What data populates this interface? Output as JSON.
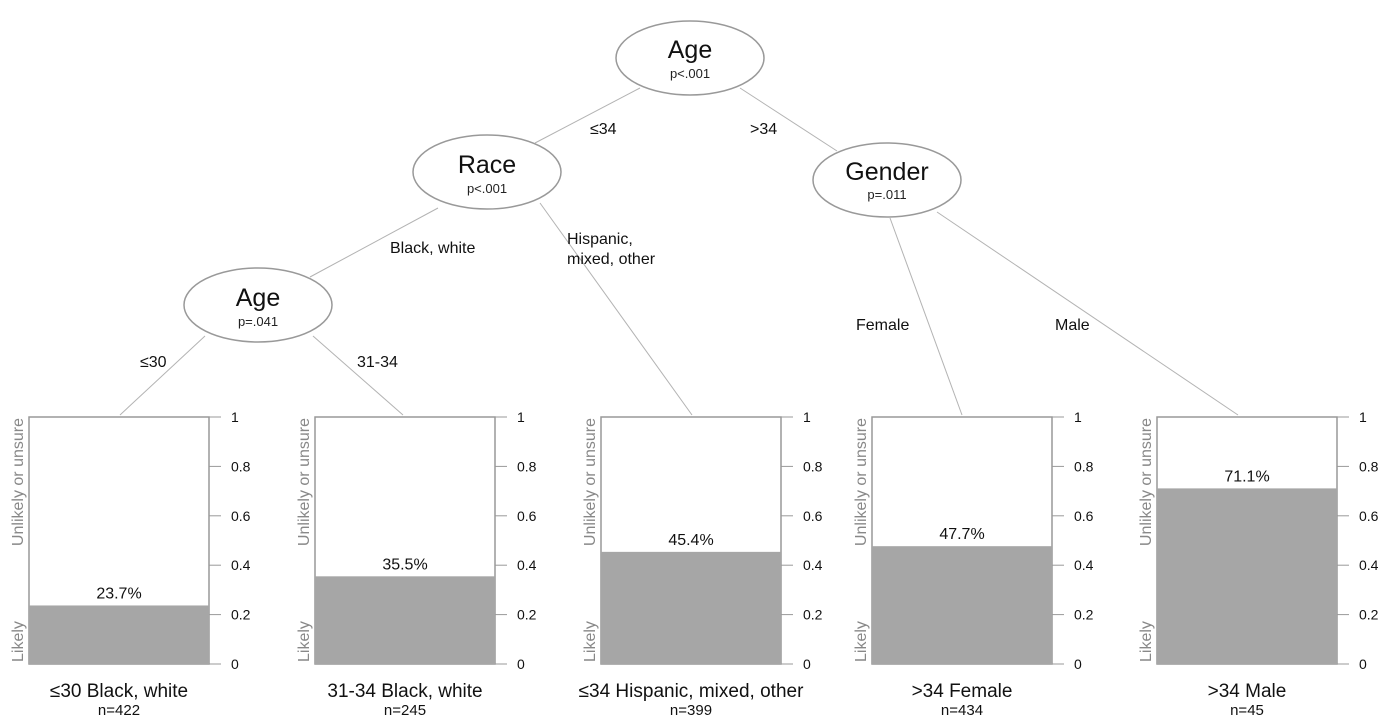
{
  "nodes": {
    "root": {
      "title": "Age",
      "p": "p<.001"
    },
    "race": {
      "title": "Race",
      "p": "p<.001"
    },
    "gender": {
      "title": "Gender",
      "p": "p=.011"
    },
    "age2": {
      "title": "Age",
      "p": "p=.041"
    }
  },
  "edges": {
    "le34": "≤34",
    "gt34": ">34",
    "black_white": "Black, white",
    "hispanic_1": "Hispanic,",
    "hispanic_2": "mixed, other",
    "female": "Female",
    "male": "Male",
    "le30": "≤30",
    "a31_34": "31-34"
  },
  "axis": {
    "ticks": [
      "0",
      "0.2",
      "0.4",
      "0.6",
      "0.8",
      "1"
    ],
    "likely": "Likely",
    "unlikely": "Unlikely or unsure"
  },
  "colors": {
    "bar_fill": "#a6a6a6",
    "frame": "#999999",
    "edge": "#b3b3b3",
    "side_text": "#888888"
  },
  "leaves": [
    {
      "name": "≤30 Black, white",
      "n": "n=422",
      "pct_label": "23.7%",
      "value": 0.237
    },
    {
      "name": "31-34 Black, white",
      "n": "n=245",
      "pct_label": "35.5%",
      "value": 0.355
    },
    {
      "name": "≤34 Hispanic, mixed, other",
      "n": "n=399",
      "pct_label": "45.4%",
      "value": 0.454
    },
    {
      "name": ">34 Female",
      "n": "n=434",
      "pct_label": "47.7%",
      "value": 0.477
    },
    {
      "name": ">34 Male",
      "n": "n=45",
      "pct_label": "71.1%",
      "value": 0.711
    }
  ]
}
